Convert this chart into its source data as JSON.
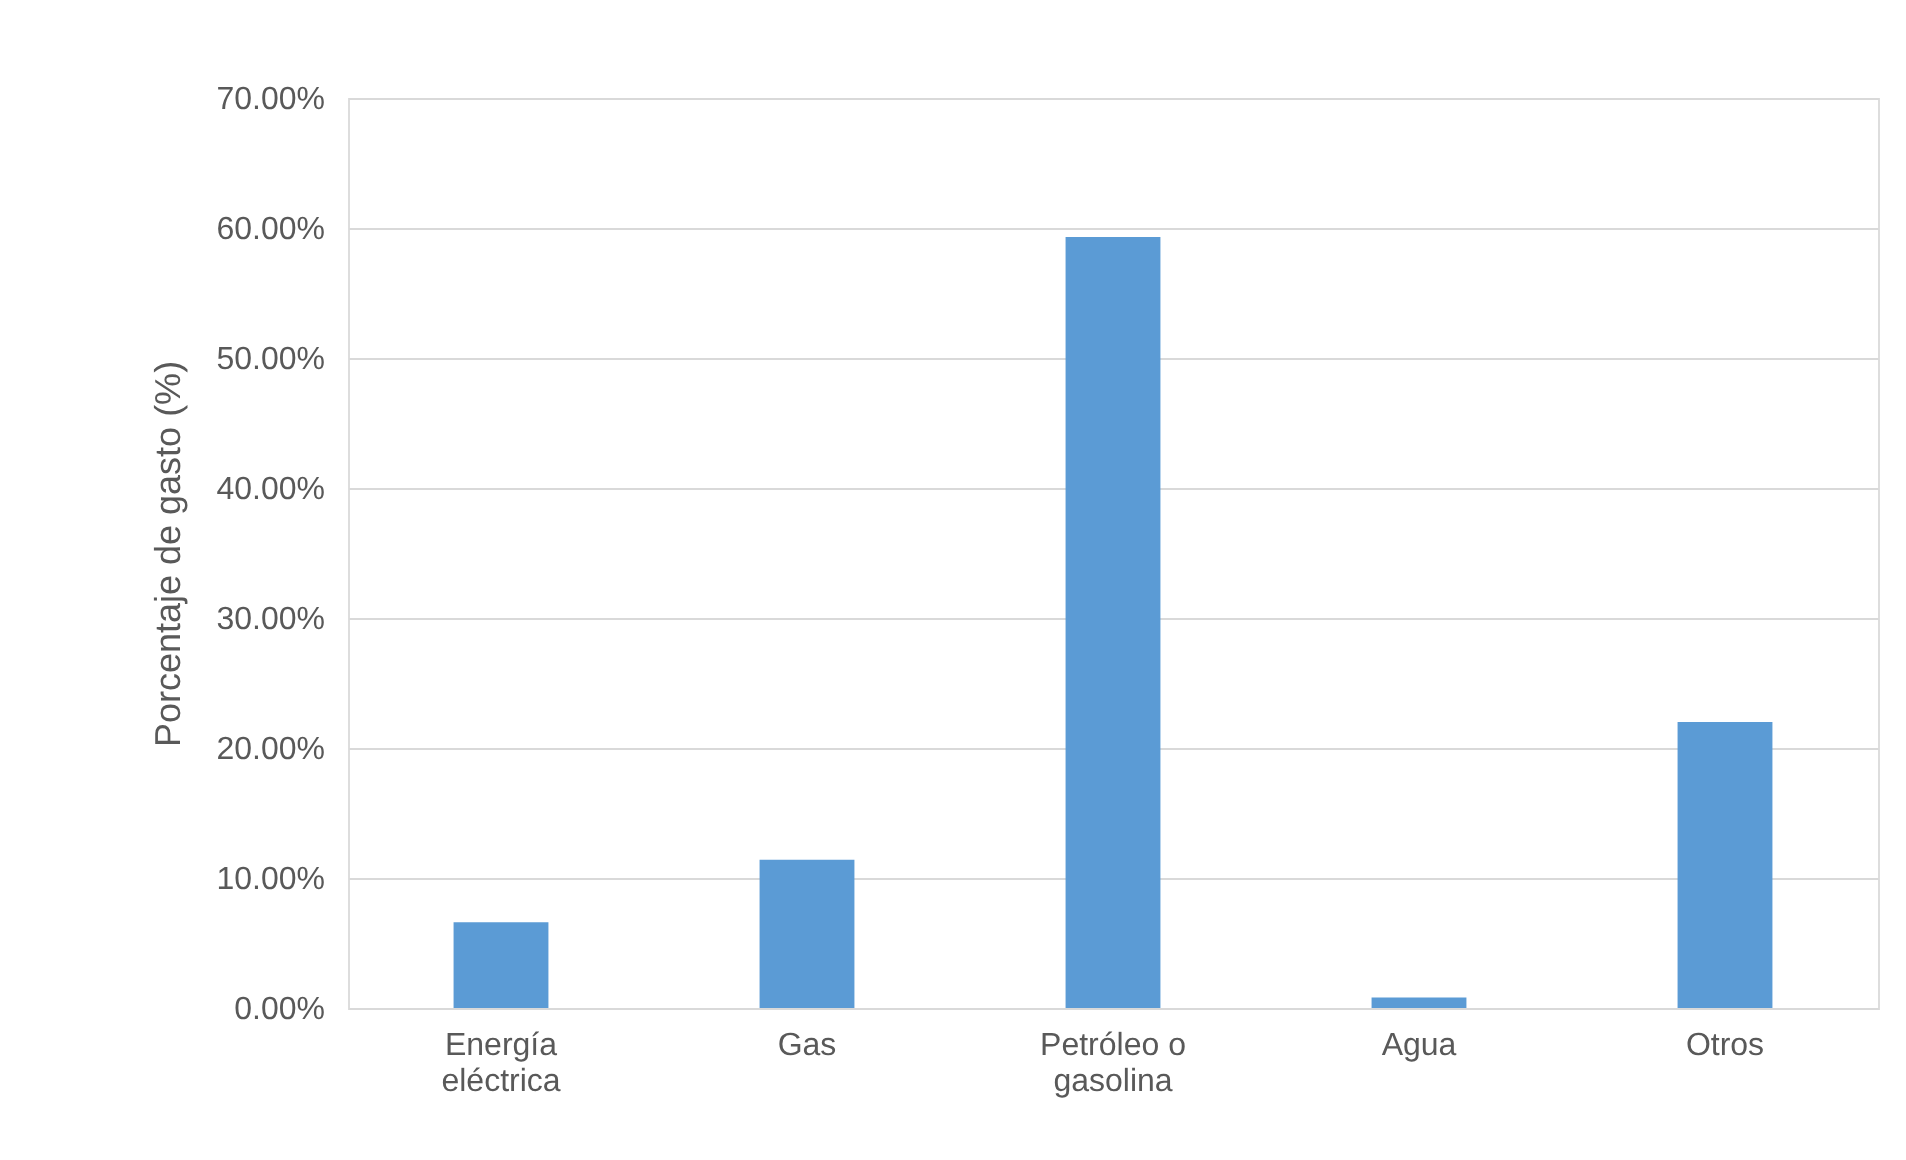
{
  "chart_data": {
    "type": "bar",
    "ylabel": "Porcentaje de gasto (%)",
    "categories": [
      "Energía eléctrica",
      "Gas",
      "Petróleo o gasolina",
      "Agua",
      "Otros"
    ],
    "values": [
      6.6,
      11.4,
      59.3,
      0.8,
      22.0
    ],
    "color": "#5b9bd5",
    "ylim": [
      0,
      70
    ],
    "yticks": [
      {
        "value": 0,
        "label": "0.00%"
      },
      {
        "value": 10,
        "label": "10.00%"
      },
      {
        "value": 20,
        "label": "20.00%"
      },
      {
        "value": 30,
        "label": "30.00%"
      },
      {
        "value": 40,
        "label": "40.00%"
      },
      {
        "value": 50,
        "label": "50.00%"
      },
      {
        "value": 60,
        "label": "60.00%"
      },
      {
        "value": 70,
        "label": "70.00%"
      }
    ],
    "grid": "y"
  }
}
